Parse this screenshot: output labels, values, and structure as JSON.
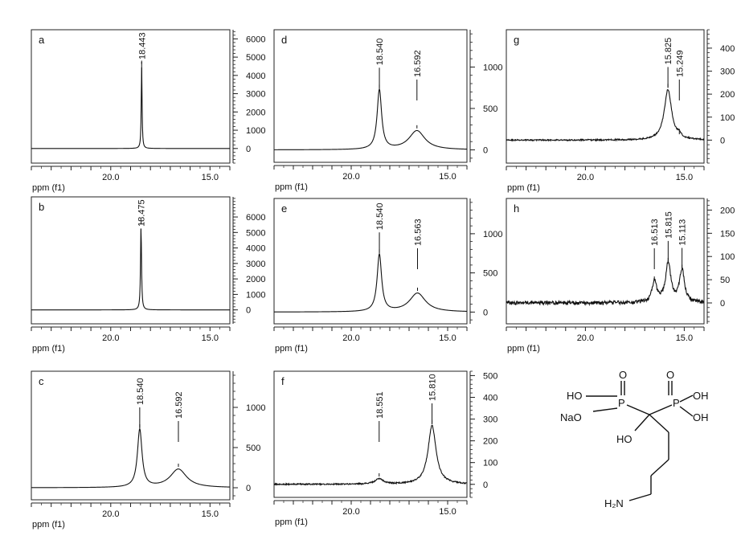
{
  "chart_data": [
    {
      "type": "line",
      "panel_label": "a",
      "xlabel": "ppm (f1)",
      "x_ticks": [
        "20.0",
        "15.0"
      ],
      "xlim": [
        24,
        14
      ],
      "y_ticks": [
        "6000",
        "5000",
        "4000",
        "3000",
        "2000",
        "1000",
        "0"
      ],
      "ylim": [
        -800,
        6500
      ],
      "peaks": [
        {
          "ppm": 18.443,
          "label": "18.443",
          "height": 4500,
          "width": 0.05
        }
      ],
      "noise": 0
    },
    {
      "type": "line",
      "panel_label": "b",
      "xlabel": "ppm (f1)",
      "x_ticks": [
        "20.0",
        "15.0"
      ],
      "xlim": [
        24,
        14
      ],
      "y_ticks": [
        "6000",
        "5000",
        "4000",
        "3000",
        "2000",
        "1000",
        "0"
      ],
      "ylim": [
        -900,
        7300
      ],
      "peaks": [
        {
          "ppm": 18.475,
          "label": "18.475",
          "height": 5400,
          "width": 0.06
        }
      ],
      "noise": 0
    },
    {
      "type": "line",
      "panel_label": "c",
      "xlabel": "ppm (f1)",
      "x_ticks": [
        "20.0",
        "15.0"
      ],
      "xlim": [
        24,
        14
      ],
      "y_ticks": [
        "1000",
        "500",
        "0"
      ],
      "ylim": [
        -150,
        1450
      ],
      "peaks": [
        {
          "ppm": 18.54,
          "label": "18.540",
          "height": 720,
          "width": 0.28
        },
        {
          "ppm": 16.592,
          "label": "16.592",
          "height": 230,
          "width": 1.0
        }
      ],
      "noise": 0
    },
    {
      "type": "line",
      "panel_label": "d",
      "xlabel": "ppm (f1)",
      "x_ticks": [
        "20.0",
        "15.0"
      ],
      "xlim": [
        24,
        14
      ],
      "y_ticks": [
        "1000",
        "500",
        "0"
      ],
      "ylim": [
        -150,
        1450
      ],
      "peaks": [
        {
          "ppm": 18.54,
          "label": "18.540",
          "height": 720,
          "width": 0.28
        },
        {
          "ppm": 16.592,
          "label": "16.592",
          "height": 230,
          "width": 1.0
        }
      ],
      "noise": 0
    },
    {
      "type": "line",
      "panel_label": "e",
      "xlabel": "ppm (f1)",
      "x_ticks": [
        "20.0",
        "15.0"
      ],
      "xlim": [
        24,
        14
      ],
      "y_ticks": [
        "1000",
        "500",
        "0"
      ],
      "ylim": [
        -150,
        1450
      ],
      "peaks": [
        {
          "ppm": 18.54,
          "label": "18.540",
          "height": 730,
          "width": 0.28
        },
        {
          "ppm": 16.563,
          "label": "16.563",
          "height": 240,
          "width": 1.0
        }
      ],
      "noise": 0
    },
    {
      "type": "line",
      "panel_label": "f",
      "xlabel": "ppm (f1)",
      "x_ticks": [
        "20.0",
        "15.0"
      ],
      "xlim": [
        24,
        14
      ],
      "y_ticks": [
        "500",
        "400",
        "300",
        "200",
        "100",
        "0"
      ],
      "ylim": [
        -60,
        520
      ],
      "peaks": [
        {
          "ppm": 18.551,
          "label": "18.551",
          "height": 25,
          "width": 0.5
        },
        {
          "ppm": 15.81,
          "label": "15.810",
          "height": 270,
          "width": 0.5
        }
      ],
      "noise": 3
    },
    {
      "type": "line",
      "panel_label": "g",
      "xlabel": "ppm (f1)",
      "x_ticks": [
        "20.0",
        "15.0"
      ],
      "xlim": [
        24,
        14
      ],
      "y_ticks": [
        "400",
        "300",
        "200",
        "100",
        "0"
      ],
      "ylim": [
        -100,
        480
      ],
      "peaks": [
        {
          "ppm": 15.825,
          "label": "15.825",
          "height": 220,
          "width": 0.45
        },
        {
          "ppm": 15.249,
          "label": "15.249",
          "height": 15,
          "width": 0.2
        }
      ],
      "noise": 3
    },
    {
      "type": "line",
      "panel_label": "h",
      "xlabel": "ppm (f1)",
      "x_ticks": [
        "20.0",
        "15.0"
      ],
      "xlim": [
        24,
        14
      ],
      "y_ticks": [
        "200",
        "150",
        "100",
        "50",
        "0"
      ],
      "ylim": [
        -45,
        225
      ],
      "peaks": [
        {
          "ppm": 16.513,
          "label": "16.513",
          "height": 45,
          "width": 0.28
        },
        {
          "ppm": 15.815,
          "label": "15.815",
          "height": 85,
          "width": 0.32
        },
        {
          "ppm": 15.113,
          "label": "15.113",
          "height": 70,
          "width": 0.3
        }
      ],
      "noise": 4
    }
  ],
  "structure": {
    "atoms": {
      "ho_left": "HO",
      "nao": "NaO",
      "p_left": "P",
      "o_left": "O",
      "p_right": "P",
      "o_right": "O",
      "oh_top": "OH",
      "oh_bottom": "OH",
      "ho_center": "HO",
      "nh2": "H₂N"
    }
  }
}
